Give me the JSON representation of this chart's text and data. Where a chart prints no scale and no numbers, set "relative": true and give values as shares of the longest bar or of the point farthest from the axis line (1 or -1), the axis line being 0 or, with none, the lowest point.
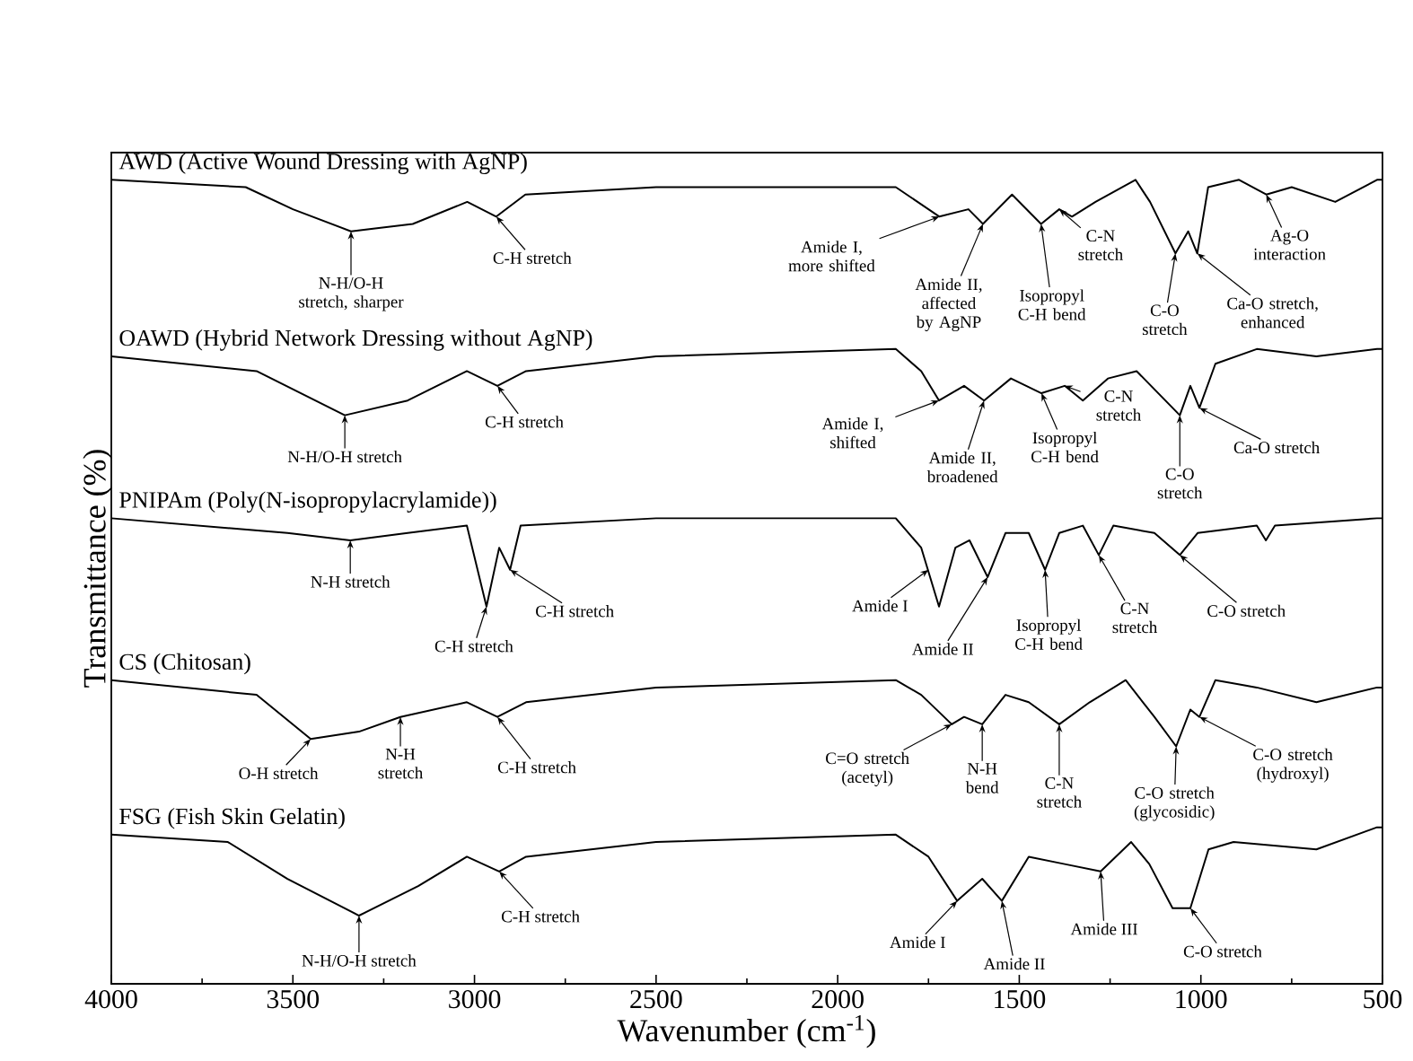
{
  "chart_data": {
    "type": "line",
    "relative": true,
    "xlabel": "Wavenumber (cm$^{-1}$)",
    "ylabel": "Transmittance (%)",
    "xlim": [
      4000,
      500
    ],
    "xticks": [
      4000,
      3500,
      3000,
      2500,
      2000,
      1500,
      1000,
      500
    ],
    "tick_labels": "x",
    "series": [
      {
        "name": "AWD (Active Wound Dressing with AgNP)",
        "color": "#000000",
        "x": [
          4000,
          3630,
          3500,
          3340,
          3170,
          3020,
          2940,
          2860,
          2500,
          1840,
          1720,
          1640,
          1600,
          1520,
          1440,
          1390,
          1355,
          1290,
          1180,
          1140,
          1070,
          1035,
          1010,
          980,
          895,
          820,
          750,
          630,
          515,
          500
        ],
        "values": [
          1.0,
          0.99,
          0.96,
          0.93,
          0.94,
          0.97,
          0.95,
          0.98,
          0.99,
          0.99,
          0.95,
          0.96,
          0.94,
          0.98,
          0.94,
          0.96,
          0.95,
          0.97,
          1.0,
          0.97,
          0.9,
          0.93,
          0.9,
          0.99,
          1.0,
          0.98,
          0.99,
          0.97,
          1.0,
          1.0
        ]
      },
      {
        "name": "OAWD (Hybrid Network Dressing without AgNP)",
        "color": "#000000",
        "x": [
          4000,
          3600,
          3357,
          3184,
          3021,
          2937,
          2858,
          2500,
          1840,
          1770,
          1721,
          1652,
          1597,
          1523,
          1439,
          1375,
          1325,
          1256,
          1177,
          1058,
          1029,
          1004,
          960,
          846,
          682,
          515,
          500
        ],
        "values": [
          0.76,
          0.74,
          0.68,
          0.7,
          0.74,
          0.72,
          0.74,
          0.76,
          0.77,
          0.74,
          0.7,
          0.72,
          0.7,
          0.73,
          0.71,
          0.72,
          0.7,
          0.73,
          0.74,
          0.68,
          0.72,
          0.69,
          0.75,
          0.77,
          0.76,
          0.77,
          0.77
        ]
      },
      {
        "name": "PNIPAm (Poly(N-isopropylacrylamide))",
        "color": "#000000",
        "x": [
          4000,
          3515,
          3342,
          3184,
          3021,
          2967,
          2932,
          2902,
          2873,
          2500,
          1840,
          1770,
          1721,
          1676,
          1637,
          1587,
          1538,
          1474,
          1429,
          1390,
          1325,
          1281,
          1241,
          1128,
          1058,
          1009,
          846,
          821,
          796,
          515,
          500
        ],
        "values": [
          0.54,
          0.52,
          0.51,
          0.52,
          0.53,
          0.42,
          0.5,
          0.47,
          0.53,
          0.54,
          0.54,
          0.5,
          0.42,
          0.5,
          0.51,
          0.46,
          0.52,
          0.52,
          0.47,
          0.52,
          0.53,
          0.49,
          0.53,
          0.52,
          0.49,
          0.52,
          0.53,
          0.51,
          0.53,
          0.54,
          0.54
        ]
      },
      {
        "name": "CS (Chitosan)",
        "color": "#000000",
        "x": [
          4000,
          3600,
          3451,
          3318,
          3204,
          3021,
          2937,
          2858,
          2500,
          1840,
          1770,
          1686,
          1652,
          1602,
          1538,
          1474,
          1390,
          1306,
          1207,
          1128,
          1068,
          1029,
          1004,
          960,
          846,
          682,
          515,
          500
        ],
        "values": [
          0.32,
          0.3,
          0.24,
          0.25,
          0.27,
          0.29,
          0.27,
          0.29,
          0.31,
          0.32,
          0.3,
          0.26,
          0.27,
          0.26,
          0.3,
          0.29,
          0.26,
          0.29,
          0.32,
          0.27,
          0.23,
          0.28,
          0.27,
          0.32,
          0.31,
          0.29,
          0.31,
          0.31
        ]
      },
      {
        "name": "FSG (Fish Skin Gelatin)",
        "color": "#000000",
        "x": [
          4000,
          3679,
          3515,
          3318,
          3155,
          3021,
          2932,
          2858,
          2500,
          1840,
          1750,
          1671,
          1602,
          1548,
          1474,
          1375,
          1276,
          1192,
          1142,
          1078,
          1029,
          979,
          910,
          682,
          515,
          500
        ],
        "values": [
          0.11,
          0.1,
          0.05,
          0.0,
          0.04,
          0.08,
          0.06,
          0.08,
          0.1,
          0.11,
          0.08,
          0.02,
          0.05,
          0.02,
          0.08,
          0.07,
          0.06,
          0.1,
          0.07,
          0.01,
          0.01,
          0.09,
          0.1,
          0.09,
          0.12,
          0.12
        ]
      }
    ],
    "annotations": [
      {
        "text": "N-H/O-H stretch, sharper",
        "x": 3340,
        "y": 0.93
      },
      {
        "text": "C-H stretch",
        "x": 2940,
        "y": 0.95
      },
      {
        "text": "Amide I, more shifted",
        "x": 1720,
        "y": 0.95
      },
      {
        "text": "Amide II, affected by AgNP",
        "x": 1600,
        "y": 0.94
      },
      {
        "text": "Isopropyl C-H bend",
        "x": 1440,
        "y": 0.94
      },
      {
        "text": "C-N stretch",
        "x": 1390,
        "y": 0.96
      },
      {
        "text": "C-O stretch",
        "x": 1070,
        "y": 0.9
      },
      {
        "text": "Ca-O stretch, enhanced",
        "x": 1010,
        "y": 0.9
      },
      {
        "text": "Ag-O interaction",
        "x": 820,
        "y": 0.98
      },
      {
        "text": "N-H/O-H stretch",
        "x": 3357,
        "y": 0.68
      },
      {
        "text": "C-H stretch",
        "x": 2937,
        "y": 0.72
      },
      {
        "text": "Amide I, shifted",
        "x": 1721,
        "y": 0.7
      },
      {
        "text": "Amide II, broadened",
        "x": 1597,
        "y": 0.7
      },
      {
        "text": "Isopropyl C-H bend",
        "x": 1439,
        "y": 0.71
      },
      {
        "text": "C-N stretch",
        "x": 1375,
        "y": 0.72
      },
      {
        "text": "C-O stretch",
        "x": 1058,
        "y": 0.68
      },
      {
        "text": "Ca-O stretch",
        "x": 1004,
        "y": 0.69
      },
      {
        "text": "N-H stretch",
        "x": 3342,
        "y": 0.51
      },
      {
        "text": "C-H stretch",
        "x": 2967,
        "y": 0.42
      },
      {
        "text": "C-H stretch",
        "x": 2902,
        "y": 0.47
      },
      {
        "text": "Amide I",
        "x": 1750,
        "y": 0.47
      },
      {
        "text": "Amide II",
        "x": 1587,
        "y": 0.46
      },
      {
        "text": "Isopropyl C-H bend",
        "x": 1429,
        "y": 0.47
      },
      {
        "text": "C-N stretch",
        "x": 1281,
        "y": 0.49
      },
      {
        "text": "C-O stretch",
        "x": 1058,
        "y": 0.49
      },
      {
        "text": "O-H stretch",
        "x": 3451,
        "y": 0.24
      },
      {
        "text": "N-H stretch",
        "x": 3204,
        "y": 0.27
      },
      {
        "text": "C-H stretch",
        "x": 2937,
        "y": 0.27
      },
      {
        "text": "C=O stretch (acetyl)",
        "x": 1686,
        "y": 0.26
      },
      {
        "text": "N-H bend",
        "x": 1602,
        "y": 0.26
      },
      {
        "text": "C-N stretch",
        "x": 1390,
        "y": 0.26
      },
      {
        "text": "C-O stretch (glycosidic)",
        "x": 1068,
        "y": 0.23
      },
      {
        "text": "C-O stretch (hydroxyl)",
        "x": 1004,
        "y": 0.27
      },
      {
        "text": "N-H/O-H stretch",
        "x": 3318,
        "y": 0.0
      },
      {
        "text": "C-H stretch",
        "x": 2932,
        "y": 0.06
      },
      {
        "text": "Amide I",
        "x": 1671,
        "y": 0.02
      },
      {
        "text": "Amide II",
        "x": 1548,
        "y": 0.02
      },
      {
        "text": "Amide III",
        "x": 1276,
        "y": 0.06
      },
      {
        "text": "C-O stretch",
        "x": 1029,
        "y": 0.01
      }
    ]
  }
}
